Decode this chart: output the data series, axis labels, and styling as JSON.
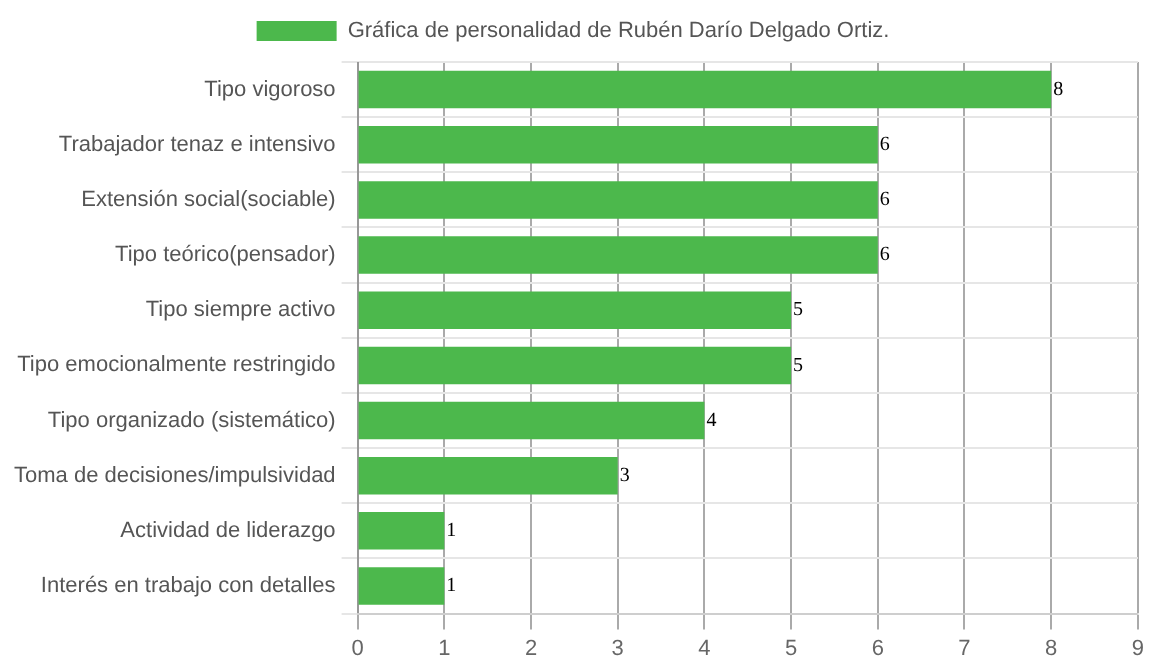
{
  "chart_data": {
    "type": "bar",
    "orientation": "horizontal",
    "categories": [
      "Tipo vigoroso",
      "Trabajador tenaz e intensivo",
      "Extensión social(sociable)",
      "Tipo teórico(pensador)",
      "Tipo siempre activo",
      "Tipo emocionalmente restringido",
      "Tipo organizado (sistemático)",
      "Toma de decisiones/impulsividad",
      "Actividad de liderazgo",
      "Interés en trabajo con detalles"
    ],
    "series": [
      {
        "name": "Gráfica de personalidad de Rubén Darío Delgado Ortiz.",
        "color": "#4cb84c",
        "values": [
          8,
          6,
          6,
          6,
          5,
          5,
          4,
          3,
          1,
          1
        ]
      }
    ],
    "xlim": [
      0,
      9
    ],
    "xticks": [
      0,
      1,
      2,
      3,
      4,
      5,
      6,
      7,
      8,
      9
    ],
    "grid": true,
    "legend": "top",
    "data_labels": true
  }
}
